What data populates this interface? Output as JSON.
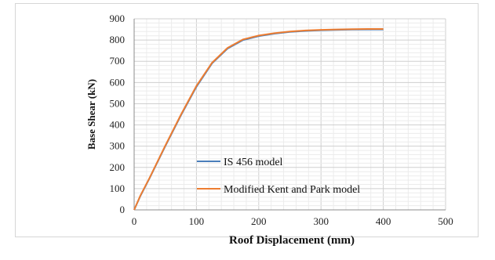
{
  "chart_data": {
    "type": "line",
    "title": "",
    "xlabel": "Roof Displacement (mm)",
    "ylabel": "Base Shear (kN)",
    "xlim": [
      0,
      500
    ],
    "ylim": [
      0,
      900
    ],
    "x_ticks": [
      "0",
      "100",
      "200",
      "300",
      "400",
      "500"
    ],
    "y_ticks": [
      "0",
      "100",
      "200",
      "300",
      "400",
      "500",
      "600",
      "700",
      "800",
      "900"
    ],
    "grid": true,
    "legend_position": "inside-bottom-center",
    "colors": {
      "series_1": "#4a7ebb",
      "series_2": "#ed7d31"
    },
    "series": [
      {
        "name": "IS 456 model",
        "x": [
          0,
          10,
          25,
          50,
          75,
          100,
          125,
          150,
          175,
          200,
          225,
          250,
          275,
          300,
          325,
          350,
          375,
          400
        ],
        "y": [
          0,
          65,
          150,
          300,
          445,
          580,
          690,
          760,
          800,
          818,
          830,
          838,
          843,
          846,
          848,
          849,
          850,
          850
        ]
      },
      {
        "name": "Modified Kent and Park model",
        "x": [
          0,
          10,
          25,
          50,
          75,
          100,
          125,
          150,
          175,
          200,
          225,
          250,
          275,
          300,
          325,
          350,
          375,
          400
        ],
        "y": [
          0,
          67,
          152,
          303,
          448,
          584,
          693,
          763,
          803,
          821,
          832,
          840,
          845,
          848,
          850,
          851,
          852,
          852
        ]
      }
    ]
  }
}
